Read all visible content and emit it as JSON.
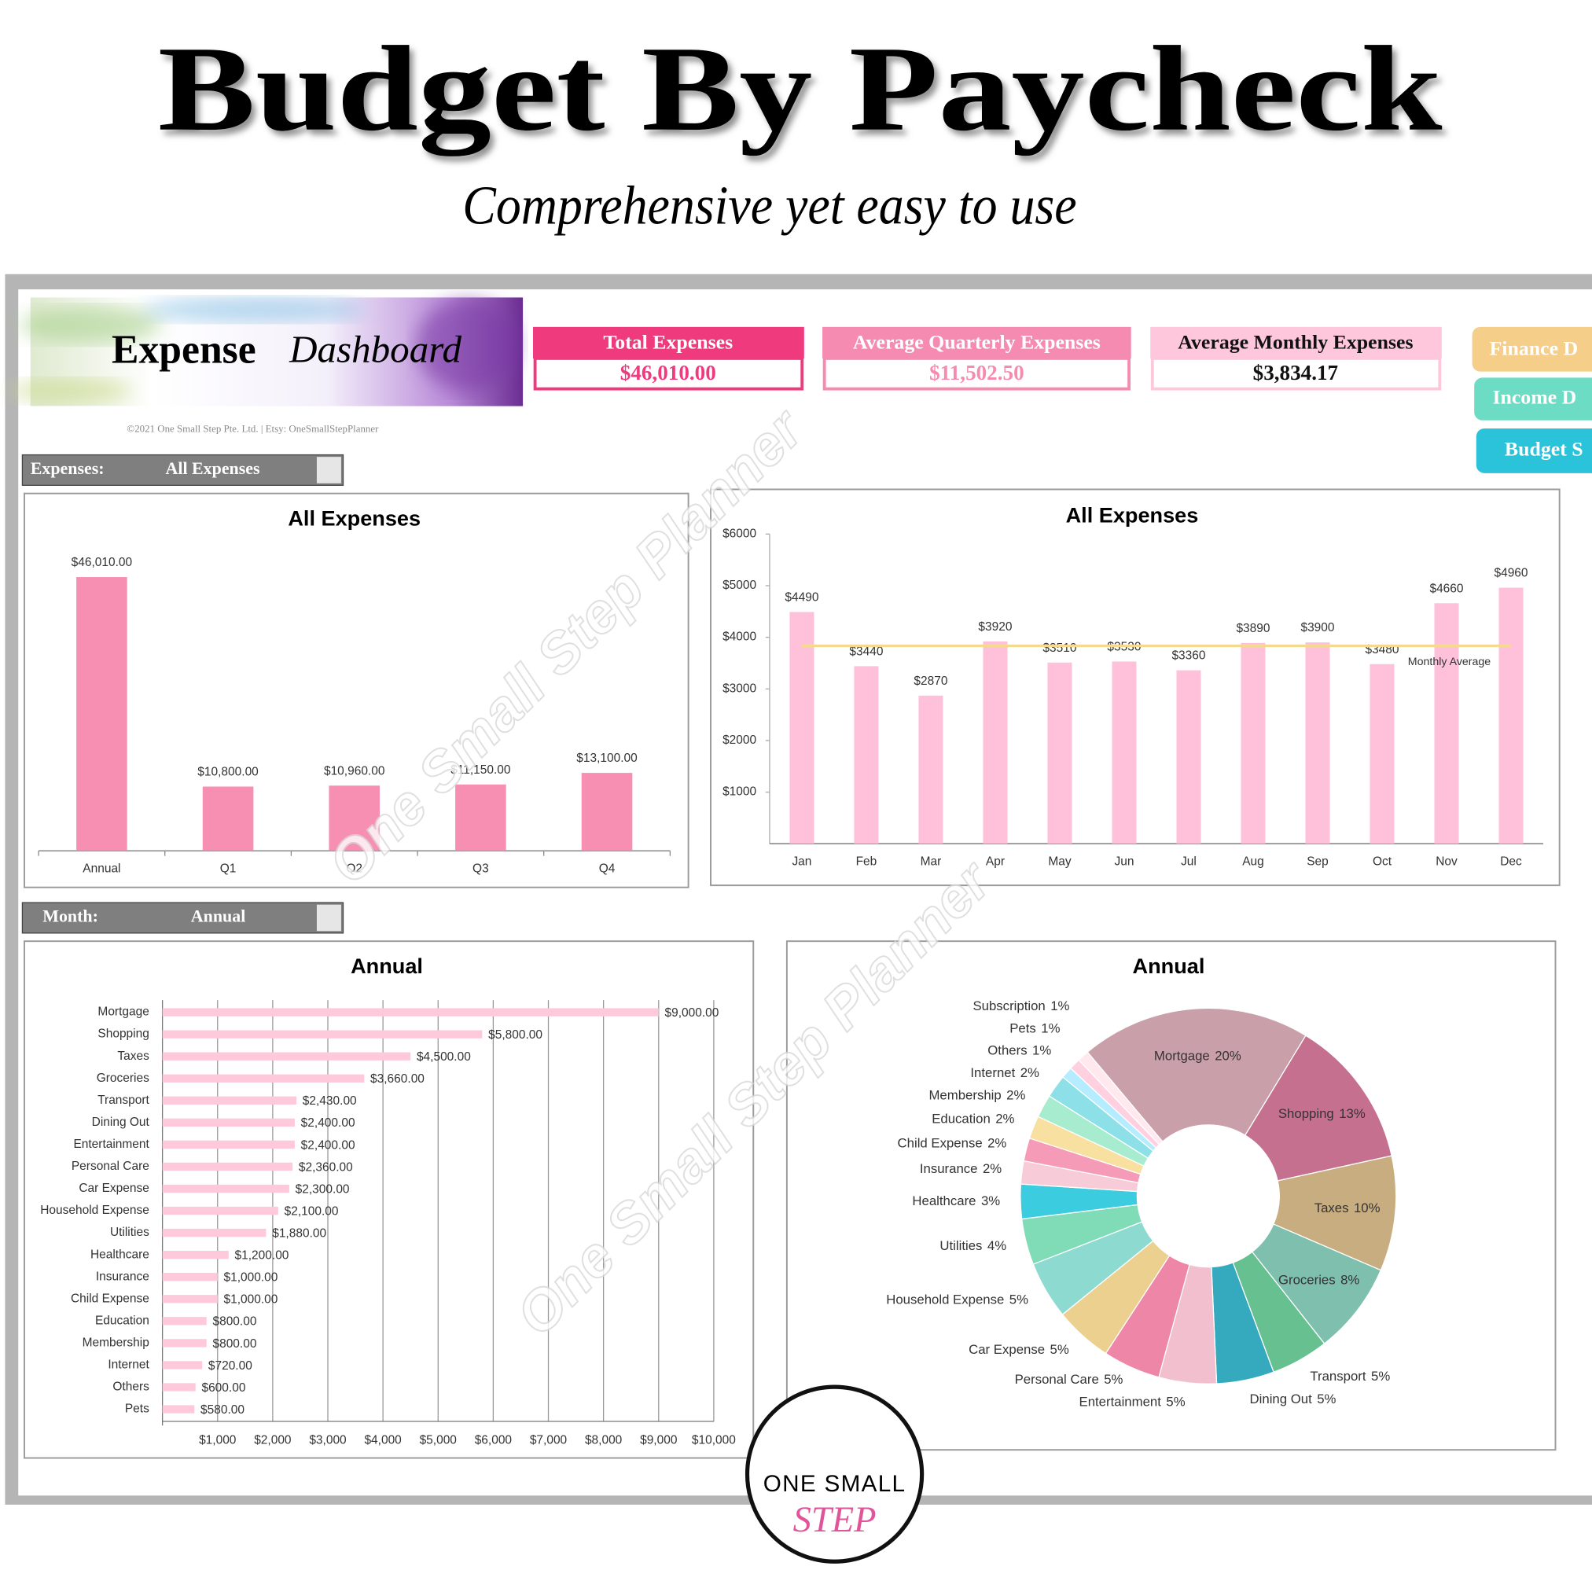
{
  "header": {
    "title": "Budget By Paycheck",
    "subtitle": "Comprehensive yet easy to use"
  },
  "dashboard": {
    "logo_word": "Expense",
    "logo_script": "Dashboard",
    "copyright": "©2021 One Small Step Pte. Ltd. | Etsy: OneSmallStepPlanner",
    "kpis": [
      {
        "label": "Total Expenses",
        "value": "$46,010.00"
      },
      {
        "label": "Average Quarterly Expenses",
        "value": "$11,502.50"
      },
      {
        "label": "Average Monthly Expenses",
        "value": "$3,834.17"
      }
    ],
    "nav": [
      "Finance D",
      "Income D",
      "Budget S"
    ],
    "filters": [
      {
        "label": "Expenses:",
        "value": "All Expenses"
      },
      {
        "label": "Month:",
        "value": "Annual"
      }
    ],
    "watermark": "One Small Step Planner"
  },
  "chart_data": [
    {
      "type": "bar",
      "title": "All Expenses",
      "categories": [
        "Annual",
        "Q1",
        "Q2",
        "Q3",
        "Q4"
      ],
      "values": [
        46010,
        10800,
        10960,
        11150,
        13100
      ],
      "value_labels": [
        "$46,010.00",
        "$10,800.00",
        "$10,960.00",
        "$11,150.00",
        "$13,100.00"
      ],
      "color": "#f78fb3",
      "ylim": [
        0,
        50000
      ]
    },
    {
      "type": "bar",
      "title": "All Expenses",
      "categories": [
        "Jan",
        "Feb",
        "Mar",
        "Apr",
        "May",
        "Jun",
        "Jul",
        "Aug",
        "Sep",
        "Oct",
        "Nov",
        "Dec"
      ],
      "values": [
        4490,
        3440,
        2870,
        3920,
        3510,
        3530,
        3360,
        3890,
        3900,
        3480,
        4660,
        4960
      ],
      "value_labels": [
        "$4490",
        "$3440",
        "$2870",
        "$3920",
        "$3510",
        "$3530",
        "$3360",
        "$3890",
        "$3900",
        "$3480",
        "$4660",
        "$4960"
      ],
      "color": "#ffc0d9",
      "ylim": [
        0,
        6000
      ],
      "yticks": [
        {
          "value": 1000,
          "label": "$1000"
        },
        {
          "value": 2000,
          "label": "$2000"
        },
        {
          "value": 3000,
          "label": "$3000"
        },
        {
          "value": 4000,
          "label": "$4000"
        },
        {
          "value": 5000,
          "label": "$5000"
        },
        {
          "value": 6000,
          "label": "$6000"
        }
      ],
      "reference": {
        "value": 3834.17,
        "label": "Monthly Average",
        "color": "#f5d98e"
      }
    },
    {
      "type": "bar",
      "orientation": "horizontal",
      "title": "Annual",
      "categories": [
        "Mortgage",
        "Shopping",
        "Taxes",
        "Groceries",
        "Transport",
        "Dining Out",
        "Entertainment",
        "Personal Care",
        "Car Expense",
        "Household Expense",
        "Utilities",
        "Healthcare",
        "Insurance",
        "Child Expense",
        "Education",
        "Membership",
        "Internet",
        "Others",
        "Pets"
      ],
      "values": [
        9000,
        5800,
        4500,
        3660,
        2430,
        2400,
        2400,
        2360,
        2300,
        2100,
        1880,
        1200,
        1000,
        1000,
        800,
        800,
        720,
        600,
        580
      ],
      "value_labels": [
        "$9,000.00",
        "$5,800.00",
        "$4,500.00",
        "$3,660.00",
        "$2,430.00",
        "$2,400.00",
        "$2,400.00",
        "$2,360.00",
        "$2,300.00",
        "$2,100.00",
        "$1,880.00",
        "$1,200.00",
        "$1,000.00",
        "$1,000.00",
        "$800.00",
        "$800.00",
        "$720.00",
        "$600.00",
        "$580.00"
      ],
      "color": "#ffc9dc",
      "xlim": [
        0,
        10000
      ],
      "xticks": [
        {
          "value": 1000,
          "label": "$1,000"
        },
        {
          "value": 2000,
          "label": "$2,000"
        },
        {
          "value": 3000,
          "label": "$3,000"
        },
        {
          "value": 4000,
          "label": "$4,000"
        },
        {
          "value": 5000,
          "label": "$5,000"
        },
        {
          "value": 6000,
          "label": "$6,000"
        },
        {
          "value": 7000,
          "label": "$7,000"
        },
        {
          "value": 8000,
          "label": "$8,000"
        },
        {
          "value": 9000,
          "label": "$9,000"
        },
        {
          "value": 10000,
          "label": "$10,000"
        }
      ],
      "grid": true
    },
    {
      "type": "donut",
      "title": "Annual",
      "categories": [
        "Mortgage",
        "Shopping",
        "Taxes",
        "Groceries",
        "Transport",
        "Dining Out",
        "Entertainment",
        "Personal Care",
        "Car Expense",
        "Household Expense",
        "Utilities",
        "Healthcare",
        "Insurance",
        "Child Expense",
        "Education",
        "Membership",
        "Internet",
        "Others",
        "Pets",
        "Subscription"
      ],
      "values": [
        20,
        13,
        10,
        8,
        5,
        5,
        5,
        5,
        5,
        5,
        4,
        3,
        2,
        2,
        2,
        2,
        2,
        1,
        1,
        1
      ],
      "value_labels": [
        "20%",
        "13%",
        "10%",
        "8%",
        "5%",
        "5%",
        "5%",
        "5%",
        "5%",
        "5%",
        "4%",
        "3%",
        "2%",
        "2%",
        "2%",
        "2%",
        "2%",
        "1%",
        "1%",
        "1%"
      ],
      "colors": [
        "#c9a0aa",
        "#c5708e",
        "#c8ad80",
        "#7fbfae",
        "#66c08f",
        "#35a9bd",
        "#f1bfcd",
        "#ee86a8",
        "#ecd08f",
        "#8ddad0",
        "#7fdcb6",
        "#3ccce0",
        "#f8cbd8",
        "#f59bb8",
        "#f7e0a0",
        "#a7eccf",
        "#8de0e8",
        "#b5ecff",
        "#ffd0e0",
        "#ffe8ee"
      ]
    }
  ],
  "brand": {
    "line1": "ONE SMALL",
    "line2": "STEP"
  }
}
